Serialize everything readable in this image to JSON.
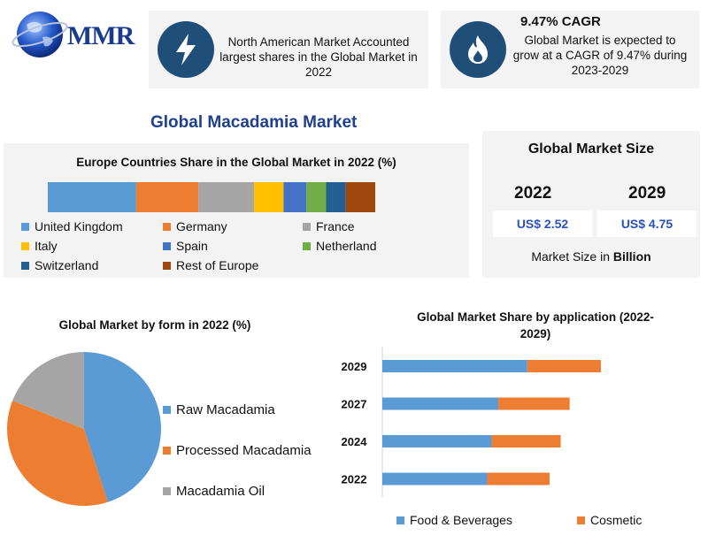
{
  "logo": {
    "text": "MMR"
  },
  "info_cards": {
    "north_america": "North American Market Accounted largest shares in the Global Market in 2022",
    "cagr_title": "9.47% CAGR",
    "cagr_text": "Global Market is expected to grow at a CAGR of 9.47% during 2023-2029"
  },
  "colors": {
    "navy": "#1f4e79",
    "title_blue": "#1f3f8f",
    "bar_blue": "#5b9bd5",
    "bar_orange": "#ed7d31",
    "pie_gray": "#a5a5a5"
  },
  "icons": {
    "left_card": "lightning-bolt-icon",
    "right_card": "flame-icon"
  },
  "main_title": "Global Macadamia Market",
  "market_size": {
    "title": "Global Market Size",
    "years": [
      "2022",
      "2029"
    ],
    "values": [
      "US$ 2.52",
      "US$ 4.75"
    ],
    "note_prefix": "Market Size in ",
    "note_bold": "Billion"
  },
  "chart_data": [
    {
      "type": "bar",
      "orientation": "stacked-horizontal",
      "title": "Europe Countries Share in the Global Market in 2022 (%)",
      "categories": [
        "United Kingdom",
        "Germany",
        "France",
        "Italy",
        "Spain",
        "Netherland",
        "Switzerland",
        "Rest of Europe"
      ],
      "values": [
        27,
        19,
        17,
        9,
        7,
        6,
        6,
        9
      ],
      "colors": [
        "#5b9bd5",
        "#ed7d31",
        "#a5a5a5",
        "#ffc000",
        "#4472c4",
        "#70ad47",
        "#255e91",
        "#9e480e"
      ],
      "legend": "bottom",
      "grid": false
    },
    {
      "type": "pie",
      "title": "Global Market by form in 2022 (%)",
      "categories": [
        "Raw Macadamia",
        "Processed Macadamia",
        "Macadamia Oil"
      ],
      "values": [
        45,
        36,
        19
      ],
      "colors": [
        "#5b9bd5",
        "#ed7d31",
        "#a5a5a5"
      ],
      "legend": "right"
    },
    {
      "type": "bar",
      "orientation": "stacked-horizontal",
      "title": "Global Market Share by application (2022-2029)",
      "categories": [
        "2029",
        "2027",
        "2024",
        "2022"
      ],
      "series": [
        {
          "name": "Food & Beverages",
          "values": [
            65,
            52,
            49,
            47
          ],
          "color": "#5b9bd5"
        },
        {
          "name": "Cosmetic",
          "values": [
            33,
            32,
            31,
            28
          ],
          "color": "#ed7d31"
        }
      ],
      "legend": "bottom",
      "grid": false
    }
  ]
}
